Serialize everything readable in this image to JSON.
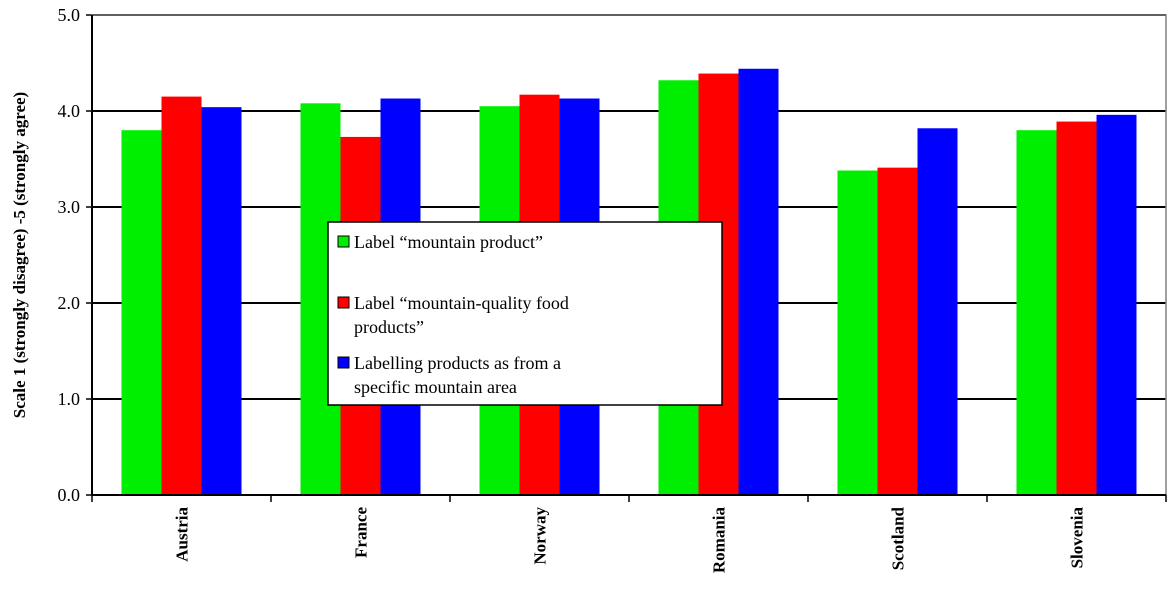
{
  "chart_data": {
    "type": "bar",
    "title": "",
    "xlabel": "",
    "ylabel": "Scale 1 (strongly disagree) -5 (strongly agree)",
    "ylim": [
      0,
      5
    ],
    "yticks": [
      "0.0",
      "1.0",
      "2.0",
      "3.0",
      "4.0",
      "5.0"
    ],
    "grid": "horizontal",
    "legend_placement": "center",
    "categories": [
      "Austria",
      "France",
      "Norway",
      "Romania",
      "Scotland",
      "Slovenia"
    ],
    "series": [
      {
        "name": "Label “mountain product”",
        "color": "#00ee00",
        "values": [
          3.8,
          4.08,
          4.05,
          4.32,
          3.38,
          3.8
        ]
      },
      {
        "name": "Label “mountain-quality food products”",
        "color": "#ff0000",
        "values": [
          4.15,
          3.73,
          4.17,
          4.39,
          3.41,
          3.89
        ]
      },
      {
        "name": "Labelling products as from a specific mountain area",
        "color": "#0000ff",
        "values": [
          4.04,
          4.13,
          4.13,
          4.44,
          3.82,
          3.96
        ]
      }
    ]
  }
}
